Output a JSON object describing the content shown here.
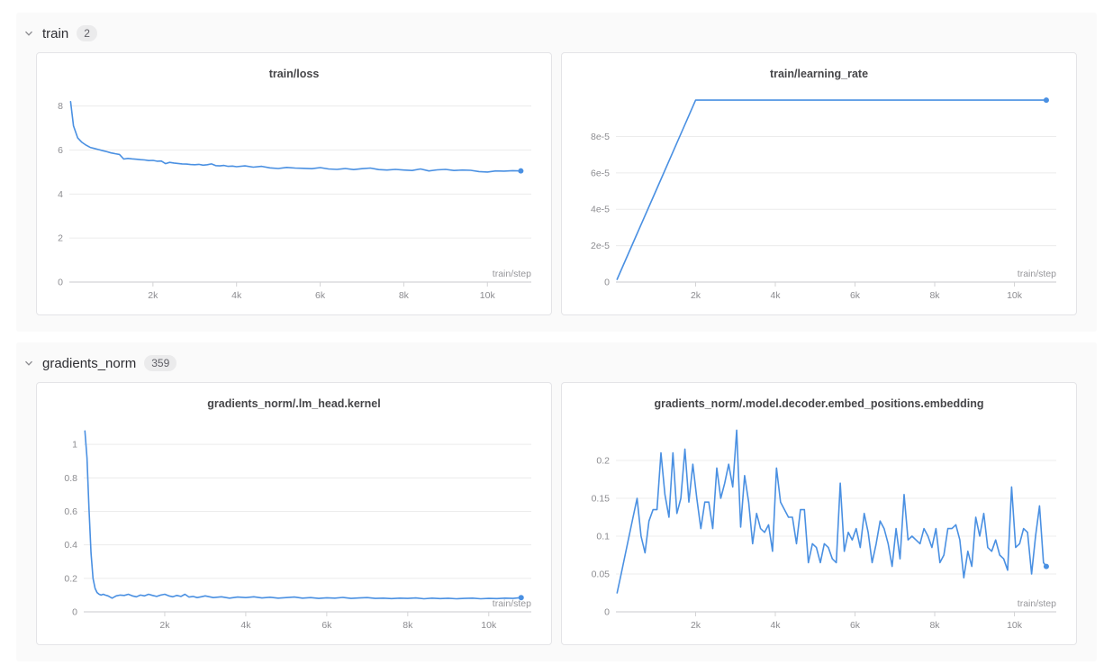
{
  "colors": {
    "line": "#4a90e2",
    "grid": "#ececec",
    "axis": "#d4d4d6",
    "tick_label": "#8c8c90",
    "axis_label": "#96969a",
    "title": "#464649",
    "section_bg": "#fafafa"
  },
  "sections": [
    {
      "title": "train",
      "count": "2"
    },
    {
      "title": "gradients_norm",
      "count": "359"
    }
  ],
  "chart_data": [
    {
      "type": "line",
      "title": "train/loss",
      "xlabel": "train/step",
      "xlim": [
        0,
        11050
      ],
      "ylim": [
        0,
        8.6
      ],
      "xticks": {
        "values": [
          2000,
          4000,
          6000,
          8000,
          10000
        ],
        "labels": [
          "2k",
          "4k",
          "6k",
          "8k",
          "10k"
        ]
      },
      "yticks": {
        "values": [
          0,
          2,
          4,
          6,
          8
        ],
        "labels": [
          "0",
          "2",
          "4",
          "6",
          "8"
        ]
      },
      "end_dot": true,
      "x": [
        30,
        100,
        200,
        300,
        400,
        500,
        600,
        700,
        800,
        900,
        1000,
        1100,
        1200,
        1300,
        1400,
        1500,
        1600,
        1700,
        1800,
        1900,
        2000,
        2100,
        2200,
        2300,
        2400,
        2500,
        2600,
        2700,
        2800,
        2900,
        3000,
        3100,
        3200,
        3300,
        3400,
        3500,
        3600,
        3700,
        3800,
        3900,
        4000,
        4200,
        4400,
        4600,
        4800,
        5000,
        5200,
        5400,
        5600,
        5800,
        6000,
        6200,
        6400,
        6600,
        6800,
        7000,
        7200,
        7400,
        7600,
        7800,
        8000,
        8200,
        8400,
        8600,
        8800,
        9000,
        9200,
        9400,
        9600,
        9800,
        10000,
        10200,
        10400,
        10600,
        10800
      ],
      "y": [
        8.2,
        7.1,
        6.55,
        6.35,
        6.22,
        6.12,
        6.07,
        6.02,
        5.97,
        5.92,
        5.87,
        5.83,
        5.8,
        5.59,
        5.62,
        5.6,
        5.58,
        5.56,
        5.55,
        5.52,
        5.53,
        5.49,
        5.5,
        5.38,
        5.44,
        5.41,
        5.39,
        5.37,
        5.36,
        5.34,
        5.33,
        5.35,
        5.31,
        5.33,
        5.37,
        5.29,
        5.28,
        5.3,
        5.26,
        5.27,
        5.24,
        5.28,
        5.22,
        5.26,
        5.19,
        5.16,
        5.21,
        5.18,
        5.17,
        5.15,
        5.2,
        5.14,
        5.12,
        5.16,
        5.11,
        5.15,
        5.18,
        5.11,
        5.09,
        5.12,
        5.09,
        5.07,
        5.14,
        5.05,
        5.1,
        5.12,
        5.07,
        5.09,
        5.08,
        5.02,
        5.0,
        5.05,
        5.04,
        5.06,
        5.05
      ]
    },
    {
      "type": "line",
      "title": "train/learning_rate",
      "xlabel": "train/step",
      "xlim": [
        0,
        11050
      ],
      "ylim": [
        0,
        0.000104
      ],
      "xticks": {
        "values": [
          2000,
          4000,
          6000,
          8000,
          10000
        ],
        "labels": [
          "2k",
          "4k",
          "6k",
          "8k",
          "10k"
        ]
      },
      "yticks": {
        "values": [
          0,
          2e-05,
          4e-05,
          6e-05,
          8e-05
        ],
        "labels": [
          "0",
          "2e-5",
          "4e-5",
          "6e-5",
          "8e-5"
        ]
      },
      "end_dot": true,
      "x": [
        30,
        500,
        1000,
        1500,
        2000,
        4000,
        6000,
        8000,
        10800
      ],
      "y": [
        1.5e-06,
        2.5e-05,
        5e-05,
        7.5e-05,
        0.0001,
        0.0001,
        0.0001,
        0.0001,
        0.0001
      ]
    },
    {
      "type": "line",
      "title": "gradients_norm/.lm_head.kernel",
      "xlabel": "train/step",
      "xlim": [
        0,
        11050
      ],
      "ylim": [
        0,
        1.13
      ],
      "xticks": {
        "values": [
          2000,
          4000,
          6000,
          8000,
          10000
        ],
        "labels": [
          "2k",
          "4k",
          "6k",
          "8k",
          "10k"
        ]
      },
      "yticks": {
        "values": [
          0,
          0.2,
          0.4,
          0.6,
          0.8,
          1
        ],
        "labels": [
          "0",
          "0.2",
          "0.4",
          "0.6",
          "0.8",
          "1"
        ]
      },
      "end_dot": true,
      "x": [
        30,
        80,
        130,
        180,
        230,
        280,
        330,
        380,
        430,
        480,
        530,
        600,
        700,
        800,
        900,
        1000,
        1100,
        1200,
        1300,
        1400,
        1500,
        1600,
        1700,
        1800,
        1900,
        2000,
        2100,
        2200,
        2300,
        2400,
        2500,
        2600,
        2700,
        2800,
        2900,
        3000,
        3200,
        3400,
        3600,
        3800,
        4000,
        4200,
        4400,
        4600,
        4800,
        5000,
        5200,
        5400,
        5600,
        5800,
        6000,
        6200,
        6400,
        6600,
        6800,
        7000,
        7200,
        7400,
        7600,
        7800,
        8000,
        8200,
        8400,
        8600,
        8800,
        9000,
        9200,
        9400,
        9600,
        9800,
        10000,
        10200,
        10400,
        10600,
        10800
      ],
      "y": [
        1.08,
        0.92,
        0.62,
        0.35,
        0.2,
        0.14,
        0.115,
        0.105,
        0.1,
        0.105,
        0.1,
        0.095,
        0.082,
        0.095,
        0.1,
        0.098,
        0.105,
        0.095,
        0.09,
        0.1,
        0.095,
        0.105,
        0.098,
        0.092,
        0.1,
        0.105,
        0.095,
        0.09,
        0.098,
        0.092,
        0.105,
        0.088,
        0.092,
        0.085,
        0.09,
        0.095,
        0.085,
        0.09,
        0.082,
        0.088,
        0.085,
        0.09,
        0.083,
        0.087,
        0.082,
        0.085,
        0.088,
        0.082,
        0.085,
        0.08,
        0.084,
        0.082,
        0.086,
        0.08,
        0.083,
        0.085,
        0.08,
        0.082,
        0.079,
        0.082,
        0.08,
        0.083,
        0.078,
        0.082,
        0.079,
        0.081,
        0.078,
        0.08,
        0.082,
        0.078,
        0.08,
        0.079,
        0.082,
        0.08,
        0.085
      ]
    },
    {
      "type": "line",
      "title": "gradients_norm/.model.decoder.embed_positions.embedding",
      "xlabel": "train/step",
      "xlim": [
        0,
        11050
      ],
      "ylim": [
        0,
        0.25
      ],
      "xticks": {
        "values": [
          2000,
          4000,
          6000,
          8000,
          10000
        ],
        "labels": [
          "2k",
          "4k",
          "6k",
          "8k",
          "10k"
        ]
      },
      "yticks": {
        "values": [
          0,
          0.05,
          0.1,
          0.15,
          0.2
        ],
        "labels": [
          "0",
          "0.05",
          "0.1",
          "0.15",
          "0.2"
        ]
      },
      "end_dot": true,
      "x": [
        30,
        130,
        230,
        330,
        430,
        530,
        630,
        730,
        830,
        930,
        1030,
        1130,
        1230,
        1330,
        1430,
        1530,
        1630,
        1730,
        1830,
        1930,
        2030,
        2130,
        2230,
        2330,
        2430,
        2530,
        2630,
        2730,
        2830,
        2930,
        3030,
        3130,
        3230,
        3330,
        3430,
        3530,
        3630,
        3730,
        3830,
        3930,
        4030,
        4130,
        4230,
        4330,
        4430,
        4530,
        4630,
        4730,
        4830,
        4930,
        5030,
        5130,
        5230,
        5330,
        5430,
        5530,
        5630,
        5730,
        5830,
        5930,
        6030,
        6130,
        6230,
        6330,
        6430,
        6530,
        6630,
        6730,
        6830,
        6930,
        7030,
        7130,
        7230,
        7330,
        7430,
        7530,
        7630,
        7730,
        7830,
        7930,
        8030,
        8130,
        8230,
        8330,
        8430,
        8530,
        8630,
        8730,
        8830,
        8930,
        9030,
        9130,
        9230,
        9330,
        9430,
        9530,
        9630,
        9730,
        9830,
        9930,
        10030,
        10130,
        10230,
        10330,
        10430,
        10530,
        10630,
        10730,
        10800
      ],
      "y": [
        0.025,
        0.05,
        0.075,
        0.1,
        0.125,
        0.15,
        0.1,
        0.078,
        0.12,
        0.135,
        0.135,
        0.21,
        0.155,
        0.125,
        0.21,
        0.13,
        0.15,
        0.215,
        0.145,
        0.195,
        0.15,
        0.11,
        0.145,
        0.145,
        0.11,
        0.19,
        0.15,
        0.17,
        0.195,
        0.165,
        0.24,
        0.112,
        0.18,
        0.145,
        0.09,
        0.13,
        0.11,
        0.105,
        0.115,
        0.08,
        0.19,
        0.145,
        0.135,
        0.125,
        0.125,
        0.09,
        0.135,
        0.135,
        0.065,
        0.09,
        0.085,
        0.065,
        0.09,
        0.085,
        0.07,
        0.065,
        0.17,
        0.08,
        0.105,
        0.095,
        0.11,
        0.085,
        0.13,
        0.105,
        0.065,
        0.09,
        0.12,
        0.11,
        0.09,
        0.06,
        0.11,
        0.07,
        0.155,
        0.095,
        0.1,
        0.095,
        0.09,
        0.11,
        0.1,
        0.085,
        0.11,
        0.065,
        0.075,
        0.11,
        0.11,
        0.115,
        0.095,
        0.045,
        0.08,
        0.06,
        0.125,
        0.1,
        0.13,
        0.085,
        0.08,
        0.095,
        0.075,
        0.07,
        0.055,
        0.165,
        0.085,
        0.09,
        0.11,
        0.105,
        0.05,
        0.1,
        0.14,
        0.065,
        0.06
      ]
    }
  ]
}
